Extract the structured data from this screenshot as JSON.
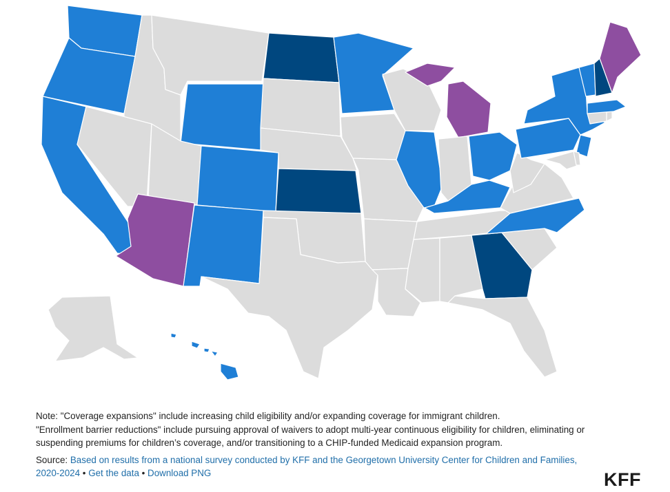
{
  "colors": {
    "none": "#dcdcdc",
    "coverage_expansion": "#1f7fd6",
    "enrollment_barrier_reduction": "#8e4ea0",
    "both": "#00477f"
  },
  "state_categories": {
    "coverage_expansion": [
      "WA",
      "OR",
      "CA",
      "WY",
      "CO",
      "NM",
      "MN",
      "IL",
      "OH",
      "KY",
      "PA",
      "NY",
      "VT",
      "NJ",
      "MA",
      "NC",
      "HI"
    ],
    "enrollment_barrier_reduction": [
      "AZ",
      "MI",
      "ME"
    ],
    "both": [
      "ND",
      "KS",
      "GA",
      "NH"
    ]
  },
  "footer": {
    "note_line1": "Note: \"Coverage expansions\" include increasing child eligibility and/or expanding coverage for immigrant children.",
    "note_line2": "\"Enrollment barrier reductions\" include pursuing approval of waivers to adopt multi-year continuous eligibility for children, eliminating or suspending premiums for children’s coverage, and/or transitioning to a CHIP-funded Medicaid expansion program.",
    "source_label": "Source: ",
    "source_link": "Based on results from a national survey conducted by KFF and the Georgetown University Center for Children and Families, 2020-2024",
    "separator": " • ",
    "get_data": "Get the data",
    "download_png": "Download PNG"
  },
  "logo": "KFF"
}
